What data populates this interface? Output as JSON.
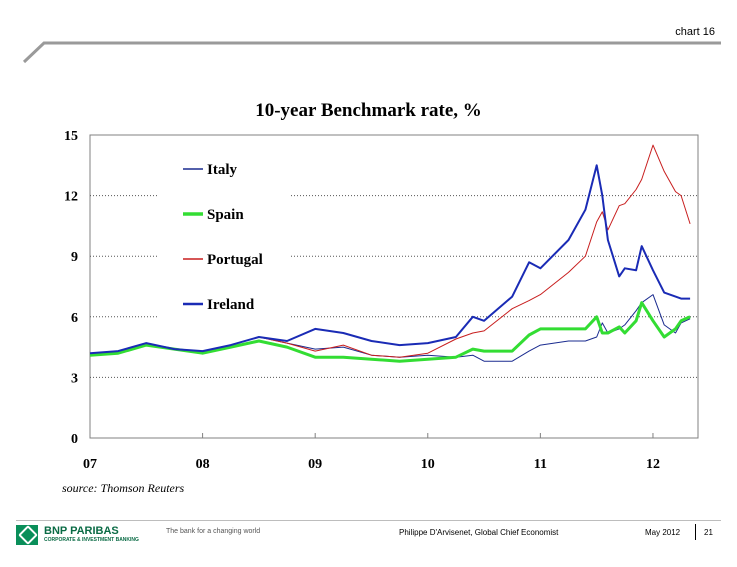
{
  "page": {
    "chart_number": "chart 16",
    "source": "source: Thomson Reuters",
    "footer": {
      "brand": "BNP PARIBAS",
      "brand_sub": "CORPORATE & INVESTMENT BANKING",
      "tagline": "The bank for a changing world",
      "author": "Philippe D'Arvisenet, Global Chief Economist",
      "date": "May 2012",
      "page_number": "21"
    },
    "colors": {
      "frame": "#808080",
      "logo_green": "#0a8f5a"
    }
  },
  "chart_data": {
    "type": "line",
    "title": "10-year Benchmark rate, %",
    "xlabel": "",
    "ylabel": "",
    "xlim": [
      2007.0,
      2012.4
    ],
    "ylim": [
      0,
      15
    ],
    "x_ticks": [
      2007,
      2008,
      2009,
      2010,
      2011,
      2012
    ],
    "x_tick_labels": [
      "07",
      "08",
      "09",
      "10",
      "11",
      "12"
    ],
    "y_ticks": [
      0,
      3,
      6,
      9,
      12,
      15
    ],
    "y_tick_labels": [
      "0",
      "3",
      "6",
      "9",
      "12",
      "15"
    ],
    "gridlines_y": [
      3,
      6,
      9,
      12
    ],
    "grid": "horizontal dotted",
    "legend_position": "top-left",
    "x": [
      2007.0,
      2007.25,
      2007.5,
      2007.75,
      2008.0,
      2008.25,
      2008.5,
      2008.75,
      2009.0,
      2009.25,
      2009.5,
      2009.75,
      2010.0,
      2010.25,
      2010.4,
      2010.5,
      2010.75,
      2010.9,
      2011.0,
      2011.25,
      2011.4,
      2011.5,
      2011.55,
      2011.6,
      2011.7,
      2011.75,
      2011.85,
      2011.9,
      2012.0,
      2012.1,
      2012.2,
      2012.25,
      2012.33
    ],
    "series": [
      {
        "name": "Italy",
        "color": "#1a2b8f",
        "width": 1,
        "values": [
          4.2,
          4.3,
          4.7,
          4.4,
          4.3,
          4.6,
          5.0,
          4.7,
          4.4,
          4.5,
          4.1,
          4.0,
          4.1,
          4.0,
          4.1,
          3.8,
          3.8,
          4.3,
          4.6,
          4.8,
          4.8,
          5.0,
          5.7,
          5.2,
          5.4,
          5.6,
          6.3,
          6.7,
          7.1,
          5.6,
          5.2,
          5.7,
          5.9
        ]
      },
      {
        "name": "Spain",
        "color": "#33dd33",
        "width": 3,
        "values": [
          4.1,
          4.2,
          4.6,
          4.4,
          4.2,
          4.5,
          4.8,
          4.5,
          4.0,
          4.0,
          3.9,
          3.8,
          3.9,
          4.0,
          4.4,
          4.3,
          4.3,
          5.1,
          5.4,
          5.4,
          5.4,
          6.0,
          5.2,
          5.2,
          5.5,
          5.2,
          5.8,
          6.7,
          5.8,
          5.0,
          5.4,
          5.8,
          6.0
        ]
      },
      {
        "name": "Portugal",
        "color": "#c81e1e",
        "width": 1,
        "values": [
          4.2,
          4.3,
          4.7,
          4.4,
          4.3,
          4.6,
          5.0,
          4.7,
          4.3,
          4.6,
          4.1,
          4.0,
          4.2,
          4.9,
          5.2,
          5.3,
          6.4,
          6.8,
          7.1,
          8.2,
          9.0,
          10.7,
          11.2,
          10.3,
          11.5,
          11.6,
          12.3,
          12.8,
          14.5,
          13.2,
          12.2,
          12.0,
          10.6
        ]
      },
      {
        "name": "Ireland",
        "color": "#1a2bb5",
        "width": 2,
        "values": [
          4.2,
          4.3,
          4.7,
          4.4,
          4.3,
          4.6,
          5.0,
          4.8,
          5.4,
          5.2,
          4.8,
          4.6,
          4.7,
          5.0,
          6.0,
          5.8,
          7.0,
          8.7,
          8.4,
          9.8,
          11.3,
          13.5,
          12.0,
          9.8,
          8.0,
          8.4,
          8.3,
          9.5,
          8.3,
          7.2,
          7.0,
          6.9,
          6.9
        ]
      }
    ]
  }
}
